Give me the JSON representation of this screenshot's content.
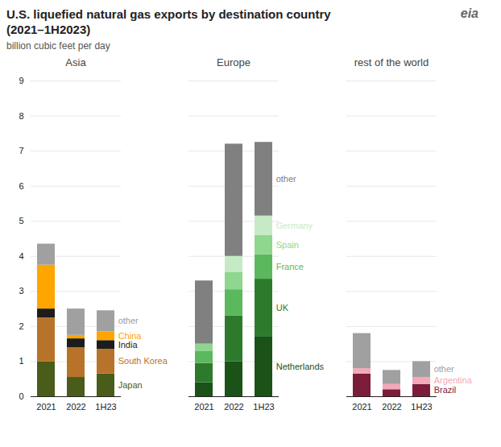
{
  "title": "U.S. liquefied natural gas exports by destination country",
  "subtitle": "(2021–1H2023)",
  "annotations": [
    "eia"
  ],
  "chart_data": [
    {
      "type": "bar",
      "stacked": true,
      "title": "Asia",
      "ylabel": "billion cubic feet per day",
      "categories": [
        "2021",
        "2022",
        "1H23"
      ],
      "series": [
        {
          "name": "Japan",
          "color": "#4A5C1A",
          "values": [
            1.0,
            0.55,
            0.65
          ]
        },
        {
          "name": "South Korea",
          "color": "#B8732A",
          "values": [
            1.25,
            0.85,
            0.7
          ]
        },
        {
          "name": "India",
          "color": "#1C1C1C",
          "values": [
            0.25,
            0.25,
            0.25
          ]
        },
        {
          "name": "China",
          "color": "#FFA500",
          "values": [
            1.25,
            0.1,
            0.25
          ]
        },
        {
          "name": "other",
          "color": "#A0A0A0",
          "values": [
            0.6,
            0.75,
            0.6
          ]
        }
      ],
      "ylim": [
        0,
        9
      ],
      "yticks": [
        0,
        1,
        2,
        3,
        4,
        5,
        6,
        7,
        8,
        9
      ],
      "grid": true
    },
    {
      "type": "bar",
      "stacked": true,
      "title": "Europe",
      "categories": [
        "2021",
        "2022",
        "1H23"
      ],
      "series": [
        {
          "name": "Netherlands",
          "color": "#1A5218",
          "values": [
            0.4,
            1.0,
            1.7
          ]
        },
        {
          "name": "UK",
          "color": "#2D7A2D",
          "values": [
            0.55,
            1.3,
            1.65
          ]
        },
        {
          "name": "France",
          "color": "#5CB85C",
          "values": [
            0.35,
            0.75,
            0.7
          ]
        },
        {
          "name": "Spain",
          "color": "#8FD68F",
          "values": [
            0.2,
            0.5,
            0.55
          ]
        },
        {
          "name": "Germany",
          "color": "#C5EAC5",
          "values": [
            0.0,
            0.45,
            0.55
          ]
        },
        {
          "name": "other",
          "color": "#808080",
          "values": [
            1.8,
            3.2,
            2.1
          ]
        }
      ],
      "ylim": [
        0,
        9
      ],
      "yticks": [
        0,
        1,
        2,
        3,
        4,
        5,
        6,
        7,
        8,
        9
      ],
      "grid": true,
      "tick_labels": "x"
    },
    {
      "type": "bar",
      "stacked": true,
      "title": "rest of the world",
      "categories": [
        "2021",
        "2022",
        "1H23"
      ],
      "series": [
        {
          "name": "Brazil",
          "color": "#7B1D3A",
          "values": [
            0.65,
            0.2,
            0.35
          ]
        },
        {
          "name": "Argentina",
          "color": "#F4A8B8",
          "values": [
            0.15,
            0.15,
            0.2
          ]
        },
        {
          "name": "other",
          "color": "#A0A0A0",
          "values": [
            1.0,
            0.4,
            0.45
          ]
        }
      ],
      "ylim": [
        0,
        9
      ],
      "yticks": [
        0,
        1,
        2,
        3,
        4,
        5,
        6,
        7,
        8,
        9
      ],
      "grid": true,
      "tick_labels": "x"
    }
  ]
}
